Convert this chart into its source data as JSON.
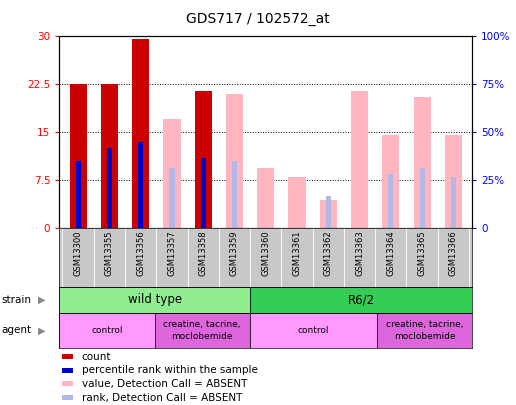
{
  "title": "GDS717 / 102572_at",
  "samples": [
    "GSM13300",
    "GSM13355",
    "GSM13356",
    "GSM13357",
    "GSM13358",
    "GSM13359",
    "GSM13360",
    "GSM13361",
    "GSM13362",
    "GSM13363",
    "GSM13364",
    "GSM13365",
    "GSM13366"
  ],
  "count_values": [
    22.5,
    22.5,
    29.5,
    0,
    21.5,
    0,
    0,
    0,
    0,
    0,
    0,
    0,
    0
  ],
  "percentile_values": [
    10.5,
    12.5,
    13.5,
    0,
    11.0,
    0,
    0,
    0,
    0,
    0,
    0,
    0,
    0
  ],
  "absent_value": [
    0,
    0,
    0,
    17.0,
    0,
    21.0,
    9.5,
    8.0,
    4.5,
    21.5,
    14.5,
    20.5,
    14.5
  ],
  "absent_rank": [
    0,
    0,
    0,
    9.5,
    0,
    10.5,
    0,
    0,
    5.0,
    0,
    8.5,
    9.5,
    8.0
  ],
  "ylim_left": [
    0,
    30
  ],
  "ylim_right": [
    0,
    100
  ],
  "yticks_left": [
    0,
    7.5,
    15,
    22.5,
    30
  ],
  "yticks_right": [
    0,
    25,
    50,
    75,
    100
  ],
  "ytick_labels_left": [
    "0",
    "7.5",
    "15",
    "22.5",
    "30"
  ],
  "ytick_labels_right": [
    "0",
    "25%",
    "50%",
    "75%",
    "100%"
  ],
  "count_color": "#cc0000",
  "percentile_color": "#0000cc",
  "absent_value_color": "#ffb6c1",
  "absent_rank_color": "#b0b8e8",
  "wt_color": "#90EE90",
  "r62_color": "#33cc55",
  "control_color": "#ff99ff",
  "treatment_color": "#dd66dd",
  "label_bg": "#c8c8c8"
}
